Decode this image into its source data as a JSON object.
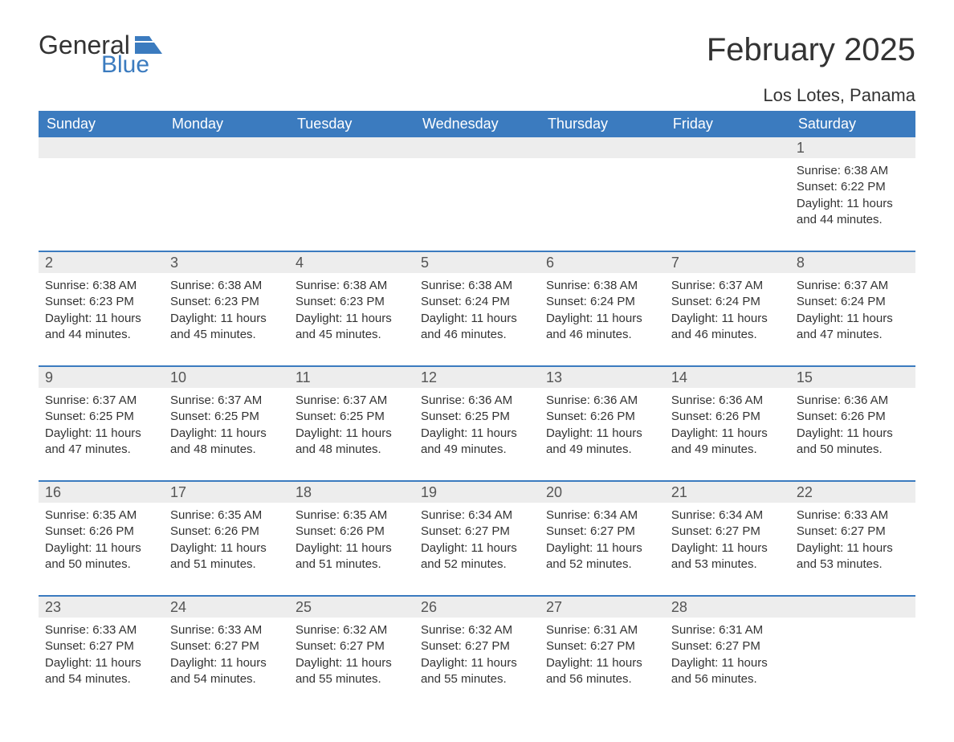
{
  "logo": {
    "word1": "General",
    "word2": "Blue",
    "text_color": "#333333",
    "accent_color": "#3b7bbf"
  },
  "title": "February 2025",
  "location": "Los Lotes, Panama",
  "colors": {
    "header_bg": "#3b7bbf",
    "header_text": "#ffffff",
    "daynum_bg": "#ededed",
    "daynum_text": "#555555",
    "body_text": "#333333",
    "rule": "#3b7bbf",
    "page_bg": "#ffffff"
  },
  "fonts": {
    "title_pt": 40,
    "location_pt": 22,
    "dow_pt": 18,
    "daynum_pt": 18,
    "detail_pt": 15
  },
  "days_of_week": [
    "Sunday",
    "Monday",
    "Tuesday",
    "Wednesday",
    "Thursday",
    "Friday",
    "Saturday"
  ],
  "weeks": [
    [
      null,
      null,
      null,
      null,
      null,
      null,
      {
        "n": "1",
        "sunrise": "Sunrise: 6:38 AM",
        "sunset": "Sunset: 6:22 PM",
        "day1": "Daylight: 11 hours",
        "day2": "and 44 minutes."
      }
    ],
    [
      {
        "n": "2",
        "sunrise": "Sunrise: 6:38 AM",
        "sunset": "Sunset: 6:23 PM",
        "day1": "Daylight: 11 hours",
        "day2": "and 44 minutes."
      },
      {
        "n": "3",
        "sunrise": "Sunrise: 6:38 AM",
        "sunset": "Sunset: 6:23 PM",
        "day1": "Daylight: 11 hours",
        "day2": "and 45 minutes."
      },
      {
        "n": "4",
        "sunrise": "Sunrise: 6:38 AM",
        "sunset": "Sunset: 6:23 PM",
        "day1": "Daylight: 11 hours",
        "day2": "and 45 minutes."
      },
      {
        "n": "5",
        "sunrise": "Sunrise: 6:38 AM",
        "sunset": "Sunset: 6:24 PM",
        "day1": "Daylight: 11 hours",
        "day2": "and 46 minutes."
      },
      {
        "n": "6",
        "sunrise": "Sunrise: 6:38 AM",
        "sunset": "Sunset: 6:24 PM",
        "day1": "Daylight: 11 hours",
        "day2": "and 46 minutes."
      },
      {
        "n": "7",
        "sunrise": "Sunrise: 6:37 AM",
        "sunset": "Sunset: 6:24 PM",
        "day1": "Daylight: 11 hours",
        "day2": "and 46 minutes."
      },
      {
        "n": "8",
        "sunrise": "Sunrise: 6:37 AM",
        "sunset": "Sunset: 6:24 PM",
        "day1": "Daylight: 11 hours",
        "day2": "and 47 minutes."
      }
    ],
    [
      {
        "n": "9",
        "sunrise": "Sunrise: 6:37 AM",
        "sunset": "Sunset: 6:25 PM",
        "day1": "Daylight: 11 hours",
        "day2": "and 47 minutes."
      },
      {
        "n": "10",
        "sunrise": "Sunrise: 6:37 AM",
        "sunset": "Sunset: 6:25 PM",
        "day1": "Daylight: 11 hours",
        "day2": "and 48 minutes."
      },
      {
        "n": "11",
        "sunrise": "Sunrise: 6:37 AM",
        "sunset": "Sunset: 6:25 PM",
        "day1": "Daylight: 11 hours",
        "day2": "and 48 minutes."
      },
      {
        "n": "12",
        "sunrise": "Sunrise: 6:36 AM",
        "sunset": "Sunset: 6:25 PM",
        "day1": "Daylight: 11 hours",
        "day2": "and 49 minutes."
      },
      {
        "n": "13",
        "sunrise": "Sunrise: 6:36 AM",
        "sunset": "Sunset: 6:26 PM",
        "day1": "Daylight: 11 hours",
        "day2": "and 49 minutes."
      },
      {
        "n": "14",
        "sunrise": "Sunrise: 6:36 AM",
        "sunset": "Sunset: 6:26 PM",
        "day1": "Daylight: 11 hours",
        "day2": "and 49 minutes."
      },
      {
        "n": "15",
        "sunrise": "Sunrise: 6:36 AM",
        "sunset": "Sunset: 6:26 PM",
        "day1": "Daylight: 11 hours",
        "day2": "and 50 minutes."
      }
    ],
    [
      {
        "n": "16",
        "sunrise": "Sunrise: 6:35 AM",
        "sunset": "Sunset: 6:26 PM",
        "day1": "Daylight: 11 hours",
        "day2": "and 50 minutes."
      },
      {
        "n": "17",
        "sunrise": "Sunrise: 6:35 AM",
        "sunset": "Sunset: 6:26 PM",
        "day1": "Daylight: 11 hours",
        "day2": "and 51 minutes."
      },
      {
        "n": "18",
        "sunrise": "Sunrise: 6:35 AM",
        "sunset": "Sunset: 6:26 PM",
        "day1": "Daylight: 11 hours",
        "day2": "and 51 minutes."
      },
      {
        "n": "19",
        "sunrise": "Sunrise: 6:34 AM",
        "sunset": "Sunset: 6:27 PM",
        "day1": "Daylight: 11 hours",
        "day2": "and 52 minutes."
      },
      {
        "n": "20",
        "sunrise": "Sunrise: 6:34 AM",
        "sunset": "Sunset: 6:27 PM",
        "day1": "Daylight: 11 hours",
        "day2": "and 52 minutes."
      },
      {
        "n": "21",
        "sunrise": "Sunrise: 6:34 AM",
        "sunset": "Sunset: 6:27 PM",
        "day1": "Daylight: 11 hours",
        "day2": "and 53 minutes."
      },
      {
        "n": "22",
        "sunrise": "Sunrise: 6:33 AM",
        "sunset": "Sunset: 6:27 PM",
        "day1": "Daylight: 11 hours",
        "day2": "and 53 minutes."
      }
    ],
    [
      {
        "n": "23",
        "sunrise": "Sunrise: 6:33 AM",
        "sunset": "Sunset: 6:27 PM",
        "day1": "Daylight: 11 hours",
        "day2": "and 54 minutes."
      },
      {
        "n": "24",
        "sunrise": "Sunrise: 6:33 AM",
        "sunset": "Sunset: 6:27 PM",
        "day1": "Daylight: 11 hours",
        "day2": "and 54 minutes."
      },
      {
        "n": "25",
        "sunrise": "Sunrise: 6:32 AM",
        "sunset": "Sunset: 6:27 PM",
        "day1": "Daylight: 11 hours",
        "day2": "and 55 minutes."
      },
      {
        "n": "26",
        "sunrise": "Sunrise: 6:32 AM",
        "sunset": "Sunset: 6:27 PM",
        "day1": "Daylight: 11 hours",
        "day2": "and 55 minutes."
      },
      {
        "n": "27",
        "sunrise": "Sunrise: 6:31 AM",
        "sunset": "Sunset: 6:27 PM",
        "day1": "Daylight: 11 hours",
        "day2": "and 56 minutes."
      },
      {
        "n": "28",
        "sunrise": "Sunrise: 6:31 AM",
        "sunset": "Sunset: 6:27 PM",
        "day1": "Daylight: 11 hours",
        "day2": "and 56 minutes."
      },
      null
    ]
  ]
}
